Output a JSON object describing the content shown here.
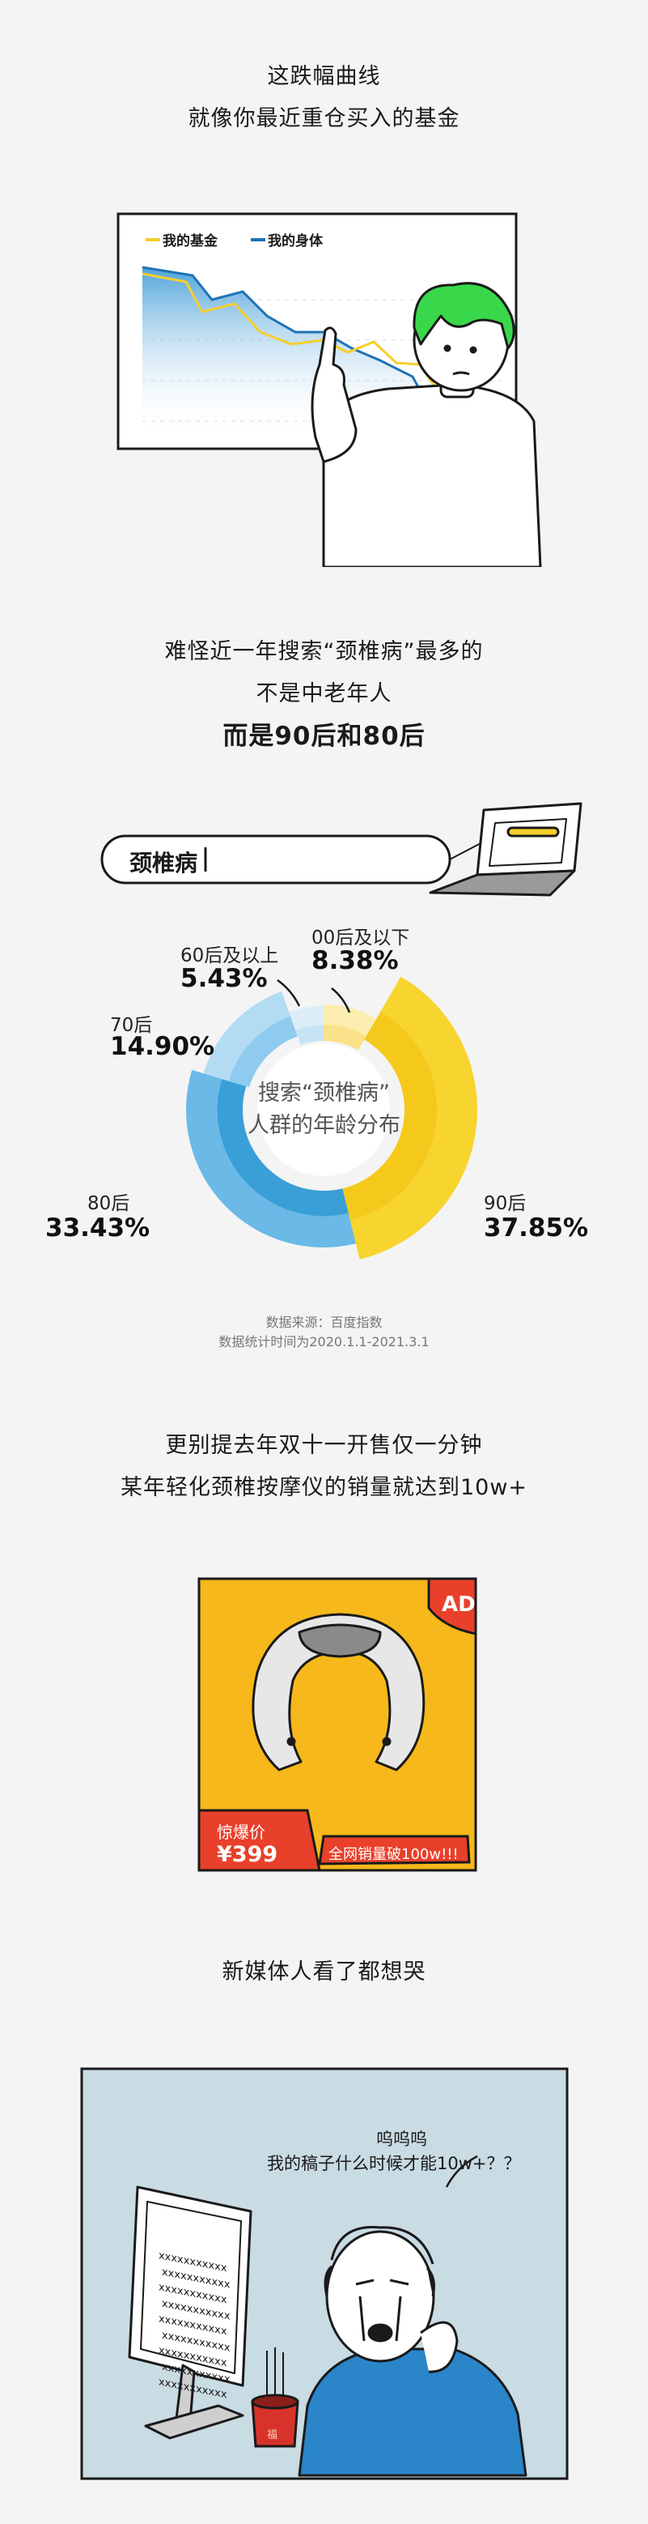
{
  "section1": {
    "line1": "这跌幅曲线",
    "line2": "就像你最近重仓买入的基金"
  },
  "chart1": {
    "legend": [
      {
        "name": "我的基金",
        "color": "#f5cf2b"
      },
      {
        "name": "我的身体",
        "color": "#1f73b4"
      }
    ]
  },
  "section2": {
    "line1": "难怪近一年搜索“颈椎病”最多的",
    "line2": "不是中老年人",
    "line3": "而是90后和80后"
  },
  "search": {
    "value": "颈椎病"
  },
  "donut": {
    "center_line1": "搜索“颈椎病”",
    "center_line2": "人群的年龄分布"
  },
  "chart_data": {
    "type": "pie",
    "categories": [
      "00后及以下",
      "90后",
      "80后",
      "70后",
      "60后及以上"
    ],
    "values": [
      8.38,
      37.85,
      33.43,
      14.9,
      5.43
    ],
    "labels": [
      "8.38%",
      "37.85%",
      "33.43%",
      "14.90%",
      "5.43%"
    ]
  },
  "source": {
    "line1": "数据来源：百度指数",
    "line2": "数据统计时间为2020.1.1-2021.3.1"
  },
  "section3": {
    "line1": "更别提去年双十一开售仅一分钟",
    "line2": "某年轻化颈椎按摩仪的销量就达到10w+"
  },
  "ad": {
    "badge": "AD",
    "price_label": "惊爆价",
    "price": "¥399",
    "sales": "全网销量破100w!!!"
  },
  "section4": {
    "line1": "新媒体人看了都想哭"
  },
  "comic": {
    "speech1": "呜呜呜",
    "speech2": "我的稿子什么时候才能10w+？？",
    "jar_label": "福"
  }
}
